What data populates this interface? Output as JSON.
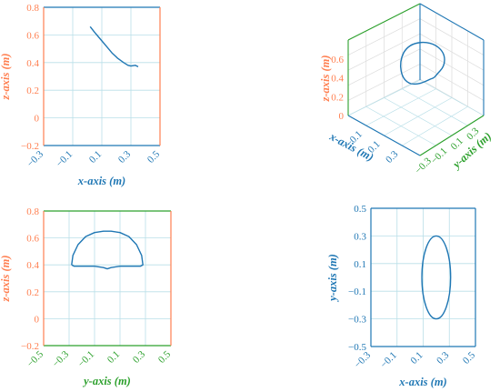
{
  "colors": {
    "x": "#1f77b4",
    "y": "#2ca02c",
    "z": "#ff7f50",
    "curve": "#1f77b4",
    "grid": "#b9dfe8",
    "grid3d": "#dcdcdc"
  },
  "chart_data": [
    {
      "id": "xz",
      "type": "line",
      "xlabel": "x-axis (m)",
      "ylabel": "z-axis (m)",
      "xlim": [
        -0.3,
        0.5
      ],
      "ylim": [
        -0.2,
        0.8
      ],
      "xticks": [
        "−0.3",
        "−0.1",
        "0.1",
        "0.3",
        "0.5"
      ],
      "yticks": [
        "−0.2",
        "0",
        "0.2",
        "0.4",
        "0.6",
        "0.8"
      ],
      "grid": true,
      "series": [
        {
          "x": [
            0.02,
            0.05,
            0.09,
            0.13,
            0.17,
            0.21,
            0.25,
            0.28,
            0.3,
            0.33,
            0.35
          ],
          "y": [
            0.66,
            0.62,
            0.57,
            0.52,
            0.47,
            0.43,
            0.4,
            0.38,
            0.375,
            0.38,
            0.37
          ]
        }
      ]
    },
    {
      "id": "3d",
      "type": "line",
      "xlabel": "x-axis (m)",
      "ylabel": "y-axis (m)",
      "zlabel": "z-axis (m)",
      "xticks": [
        "−0.1",
        "0.1",
        "0.3"
      ],
      "yticks": [
        "−0.3",
        "−0.1",
        "0.1",
        "0.3"
      ],
      "zticks": [
        "0",
        "0.2",
        "0.4",
        "0.6"
      ],
      "grid": true,
      "series": [
        {
          "note_shape": "closed curve (arch profile)"
        }
      ]
    },
    {
      "id": "yz",
      "type": "line",
      "xlabel": "y-axis (m)",
      "ylabel": "z-axis (m)",
      "xlim": [
        -0.5,
        0.5
      ],
      "ylim": [
        -0.2,
        0.8
      ],
      "xticks": [
        "−0.5",
        "−0.3",
        "−0.1",
        "0.1",
        "0.3",
        "0.5"
      ],
      "yticks": [
        "−0.2",
        "0",
        "0.2",
        "0.4",
        "0.6",
        "0.8"
      ],
      "grid": true,
      "series": [
        {
          "x": [
            -0.28,
            -0.27,
            -0.23,
            -0.17,
            -0.1,
            -0.03,
            0.03,
            0.1,
            0.17,
            0.23,
            0.27,
            0.28,
            0.26,
            0.2,
            0.1,
            0.03,
            0.0,
            -0.03,
            -0.1,
            -0.2,
            -0.26,
            -0.28
          ],
          "y": [
            0.4,
            0.47,
            0.55,
            0.61,
            0.64,
            0.65,
            0.65,
            0.64,
            0.61,
            0.55,
            0.47,
            0.4,
            0.39,
            0.39,
            0.39,
            0.38,
            0.37,
            0.38,
            0.39,
            0.39,
            0.39,
            0.4
          ]
        }
      ]
    },
    {
      "id": "xy",
      "type": "line",
      "xlabel": "x-axis (m)",
      "ylabel": "y-axis (m)",
      "xlim": [
        -0.3,
        0.5
      ],
      "ylim": [
        -0.5,
        0.5
      ],
      "xticks": [
        "−0.3",
        "−0.1",
        "0.1",
        "0.3",
        "0.5"
      ],
      "yticks": [
        "−0.5",
        "−0.3",
        "−0.1",
        "0.1",
        "0.3",
        "0.5"
      ],
      "grid": true,
      "series": [
        {
          "ellipse": {
            "cx": 0.2,
            "cy": 0.0,
            "rx": 0.11,
            "ry": 0.3
          }
        }
      ]
    }
  ]
}
